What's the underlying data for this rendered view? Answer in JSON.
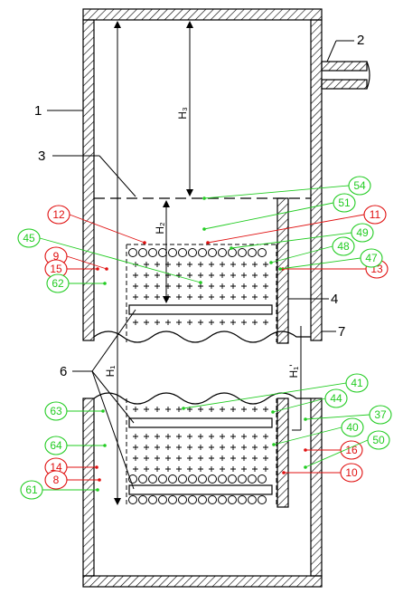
{
  "colors": {
    "line": "#000000",
    "red": "#e01010",
    "green": "#22cc22",
    "background": "#ffffff"
  },
  "labels": {
    "l1": "1",
    "l2": "2",
    "l3": "3",
    "l4": "4",
    "l6": "6",
    "l7": "7"
  },
  "dims": {
    "h1": "H₁",
    "h1p": "H₁'",
    "h2": "H₂",
    "h3": "H₃"
  },
  "callouts": {
    "red": [
      {
        "id": "c12",
        "text": "12"
      },
      {
        "id": "c11",
        "text": "11"
      },
      {
        "id": "c9",
        "text": "9"
      },
      {
        "id": "c15",
        "text": "15"
      },
      {
        "id": "c13",
        "text": "13"
      },
      {
        "id": "c16",
        "text": "16"
      },
      {
        "id": "c14",
        "text": "14"
      },
      {
        "id": "c8",
        "text": "8"
      },
      {
        "id": "c10",
        "text": "10"
      }
    ],
    "green": [
      {
        "id": "c54",
        "text": "54"
      },
      {
        "id": "c51",
        "text": "51"
      },
      {
        "id": "c49",
        "text": "49"
      },
      {
        "id": "c48",
        "text": "48"
      },
      {
        "id": "c47",
        "text": "47"
      },
      {
        "id": "c45",
        "text": "45"
      },
      {
        "id": "c62",
        "text": "62"
      },
      {
        "id": "c41",
        "text": "41"
      },
      {
        "id": "c44",
        "text": "44"
      },
      {
        "id": "c37",
        "text": "37"
      },
      {
        "id": "c40",
        "text": "40"
      },
      {
        "id": "c50",
        "text": "50"
      },
      {
        "id": "c63",
        "text": "63"
      },
      {
        "id": "c64",
        "text": "64"
      },
      {
        "id": "c61",
        "text": "61"
      }
    ]
  }
}
